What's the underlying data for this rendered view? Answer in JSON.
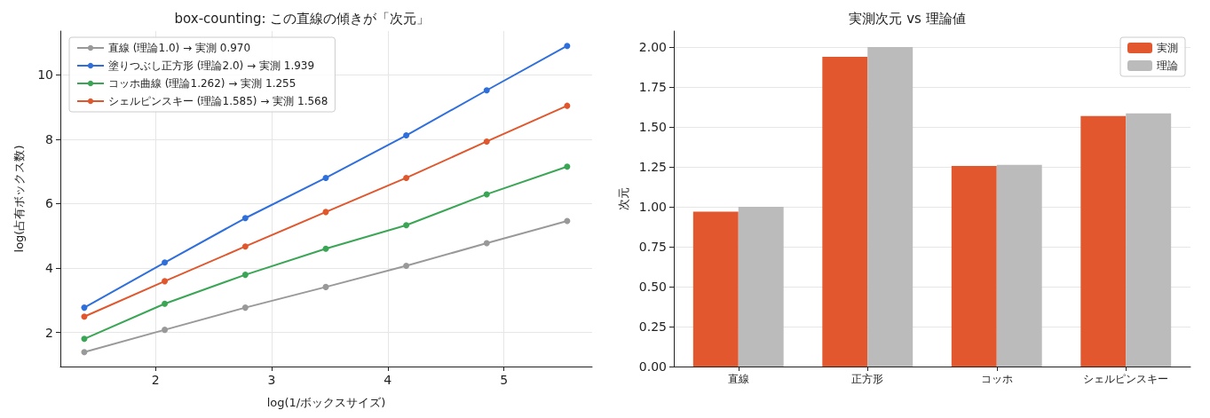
{
  "chart_data": [
    {
      "type": "line",
      "title": "box-counting: この直線の傾きが「次元」",
      "xlabel": "log(1/ボックスサイズ)",
      "ylabel": "log(占有ボックス数)",
      "x": [
        1.386,
        2.079,
        2.773,
        3.466,
        4.159,
        4.852,
        5.545
      ],
      "series": [
        {
          "name": "直線 (理論1.0) → 実測 0.970",
          "color": "#999999",
          "values": [
            1.39,
            2.08,
            2.77,
            3.41,
            4.07,
            4.77,
            5.46
          ]
        },
        {
          "name": "塗りつぶし正方形 (理論2.0) → 実測 1.939",
          "color": "#2f6fdb",
          "values": [
            2.77,
            4.17,
            5.55,
            6.8,
            8.12,
            9.52,
            10.9
          ]
        },
        {
          "name": "コッホ曲線 (理論1.262) → 実測 1.255",
          "color": "#3aa655",
          "values": [
            1.8,
            2.89,
            3.79,
            4.6,
            5.33,
            6.29,
            7.15
          ]
        },
        {
          "name": "シェルピンスキー (理論1.585) → 実測 1.568",
          "color": "#e0572d",
          "values": [
            2.49,
            3.59,
            4.67,
            5.74,
            6.8,
            7.93,
            9.04
          ]
        }
      ],
      "xlim": [
        1.18,
        5.76
      ],
      "xticks": [
        2,
        3,
        4,
        5
      ],
      "ylim": [
        0.94,
        11.36
      ],
      "yticks": [
        2,
        4,
        6,
        8,
        10
      ],
      "grid": true,
      "legend": "top left",
      "marker": "circle",
      "line_style": "solid"
    },
    {
      "type": "bar",
      "title": "実測次元 vs 理論値",
      "ylabel": "次元",
      "categories": [
        "直線",
        "正方形",
        "コッホ",
        "シェルピンスキー"
      ],
      "series": [
        {
          "name": "実測",
          "color": "#e2572e",
          "values": [
            0.97,
            1.939,
            1.255,
            1.568
          ]
        },
        {
          "name": "理論",
          "color": "#bbbbbb",
          "values": [
            1.0,
            2.0,
            1.262,
            1.585
          ]
        }
      ],
      "ylim": [
        0,
        2.1
      ],
      "yticks": [
        {
          "value": 0,
          "label": "0.00"
        },
        {
          "value": 0.25,
          "label": "0.25"
        },
        {
          "value": 0.5,
          "label": "0.50"
        },
        {
          "value": 0.75,
          "label": "0.75"
        },
        {
          "value": 1,
          "label": "1.00"
        },
        {
          "value": 1.25,
          "label": "1.25"
        },
        {
          "value": 1.5,
          "label": "1.50"
        },
        {
          "value": 1.75,
          "label": "1.75"
        },
        {
          "value": 2,
          "label": "2.00"
        }
      ],
      "grid": "y",
      "legend": "top right"
    }
  ]
}
